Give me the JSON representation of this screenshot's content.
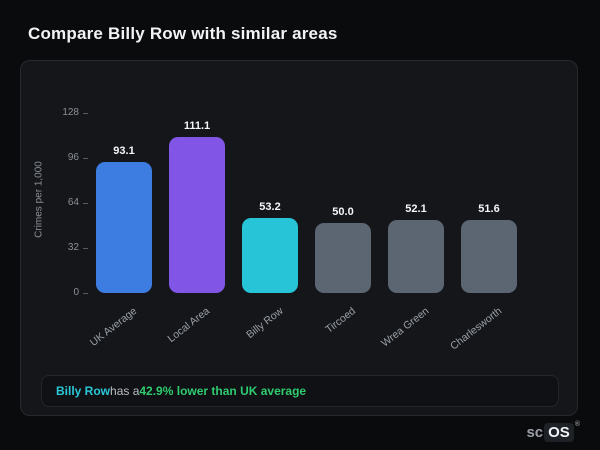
{
  "page": {
    "title": "Compare Billy Row with similar areas"
  },
  "chart_data": {
    "type": "bar",
    "title": "Compare Billy Row with similar areas",
    "categories": [
      "UK Average",
      "Local Area",
      "Billy Row",
      "Tircoed",
      "Wrea Green",
      "Charlesworth"
    ],
    "values": [
      93.1,
      111.1,
      53.2,
      50.0,
      52.1,
      51.6
    ],
    "value_labels": [
      "93.1",
      "111.1",
      "53.2",
      "50.0",
      "52.1",
      "51.6"
    ],
    "bar_colors": [
      "#3d7de2",
      "#8155e6",
      "#26c4d6",
      "#5c6673",
      "#5c6673",
      "#5c6673"
    ],
    "xlabel": "",
    "ylabel": "Crimes per 1,000",
    "yticks": [
      0,
      32,
      64,
      96,
      128
    ],
    "ylim": [
      0,
      128
    ],
    "grid": false,
    "legend": false
  },
  "note": {
    "area": "Billy Row",
    "middle": " has a ",
    "highlight": "42.9% lower than UK average"
  },
  "logo": {
    "prefix": "sc",
    "suffix": "OS",
    "registered": "®"
  }
}
